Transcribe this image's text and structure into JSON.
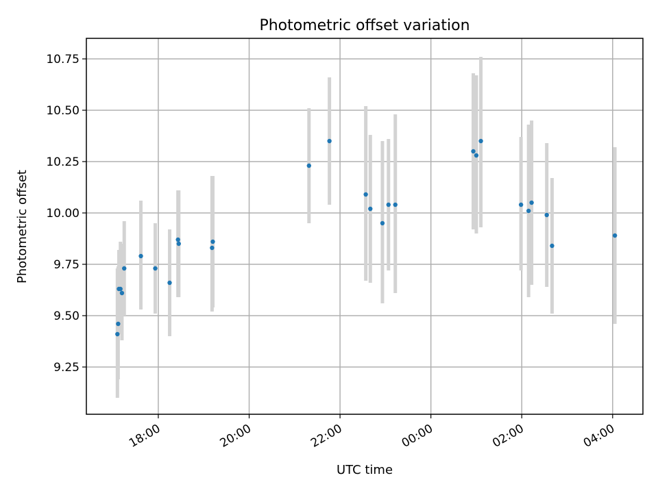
{
  "chart_data": {
    "type": "scatter",
    "title": "Photometric offset variation",
    "xlabel": "UTC time",
    "ylabel": "Photometric offset",
    "x_unit": "UTC time (HH:MM)",
    "xlim": [
      "16:25",
      "04:40 (next day)"
    ],
    "ylim": [
      9.02,
      10.85
    ],
    "x_ticks": [
      "18:00",
      "20:00",
      "22:00",
      "00:00",
      "02:00",
      "04:00"
    ],
    "x_tick_rotation_deg": 30,
    "y_ticks": [
      "9.25",
      "9.50",
      "9.75",
      "10.00",
      "10.25",
      "10.50",
      "10.75"
    ],
    "grid": true,
    "legend": "none",
    "colors": {
      "marker": "#1f77b4",
      "errorbar": "#d3d3d3",
      "grid": "#b0b0b0"
    },
    "points": [
      {
        "time": "17:06",
        "y": 9.41,
        "err_low": 9.1,
        "err_high": 9.73
      },
      {
        "time": "17:07",
        "y": 9.46,
        "err_low": 9.19,
        "err_high": 9.74
      },
      {
        "time": "17:08",
        "y": 9.63,
        "err_low": 9.44,
        "err_high": 9.82
      },
      {
        "time": "17:10",
        "y": 9.63,
        "err_low": 9.41,
        "err_high": 9.86
      },
      {
        "time": "17:12",
        "y": 9.61,
        "err_low": 9.38,
        "err_high": 9.85
      },
      {
        "time": "17:15",
        "y": 9.73,
        "err_low": 9.5,
        "err_high": 9.96
      },
      {
        "time": "17:37",
        "y": 9.79,
        "err_low": 9.53,
        "err_high": 10.06
      },
      {
        "time": "17:56",
        "y": 9.73,
        "err_low": 9.51,
        "err_high": 9.95
      },
      {
        "time": "18:15",
        "y": 9.66,
        "err_low": 9.4,
        "err_high": 9.92
      },
      {
        "time": "18:26",
        "y": 9.87,
        "err_low": 9.59,
        "err_high": 10.11
      },
      {
        "time": "18:27",
        "y": 9.85,
        "err_low": 9.59,
        "err_high": 10.11
      },
      {
        "time": "19:11",
        "y": 9.83,
        "err_low": 9.52,
        "err_high": 10.18
      },
      {
        "time": "19:12",
        "y": 9.86,
        "err_low": 9.54,
        "err_high": 10.18
      },
      {
        "time": "21:19",
        "y": 10.23,
        "err_low": 9.95,
        "err_high": 10.51
      },
      {
        "time": "21:46",
        "y": 10.35,
        "err_low": 10.04,
        "err_high": 10.66
      },
      {
        "time": "22:34",
        "y": 10.09,
        "err_low": 9.67,
        "err_high": 10.52
      },
      {
        "time": "22:40",
        "y": 10.02,
        "err_low": 9.66,
        "err_high": 10.38
      },
      {
        "time": "22:56",
        "y": 9.95,
        "err_low": 9.56,
        "err_high": 10.35
      },
      {
        "time": "23:04",
        "y": 10.04,
        "err_low": 9.72,
        "err_high": 10.36
      },
      {
        "time": "23:13",
        "y": 10.04,
        "err_low": 9.61,
        "err_high": 10.48
      },
      {
        "time": "00:56",
        "y": 10.3,
        "err_low": 9.92,
        "err_high": 10.68
      },
      {
        "time": "01:00",
        "y": 10.28,
        "err_low": 9.9,
        "err_high": 10.67
      },
      {
        "time": "01:06",
        "y": 10.35,
        "err_low": 9.93,
        "err_high": 10.76
      },
      {
        "time": "01:59",
        "y": 10.04,
        "err_low": 9.72,
        "err_high": 10.37
      },
      {
        "time": "02:09",
        "y": 10.01,
        "err_low": 9.59,
        "err_high": 10.43
      },
      {
        "time": "02:13",
        "y": 10.05,
        "err_low": 9.65,
        "err_high": 10.45
      },
      {
        "time": "02:33",
        "y": 9.99,
        "err_low": 9.64,
        "err_high": 10.34
      },
      {
        "time": "02:40",
        "y": 9.84,
        "err_low": 9.51,
        "err_high": 10.17
      },
      {
        "time": "04:03",
        "y": 9.89,
        "err_low": 9.46,
        "err_high": 10.32
      }
    ]
  }
}
